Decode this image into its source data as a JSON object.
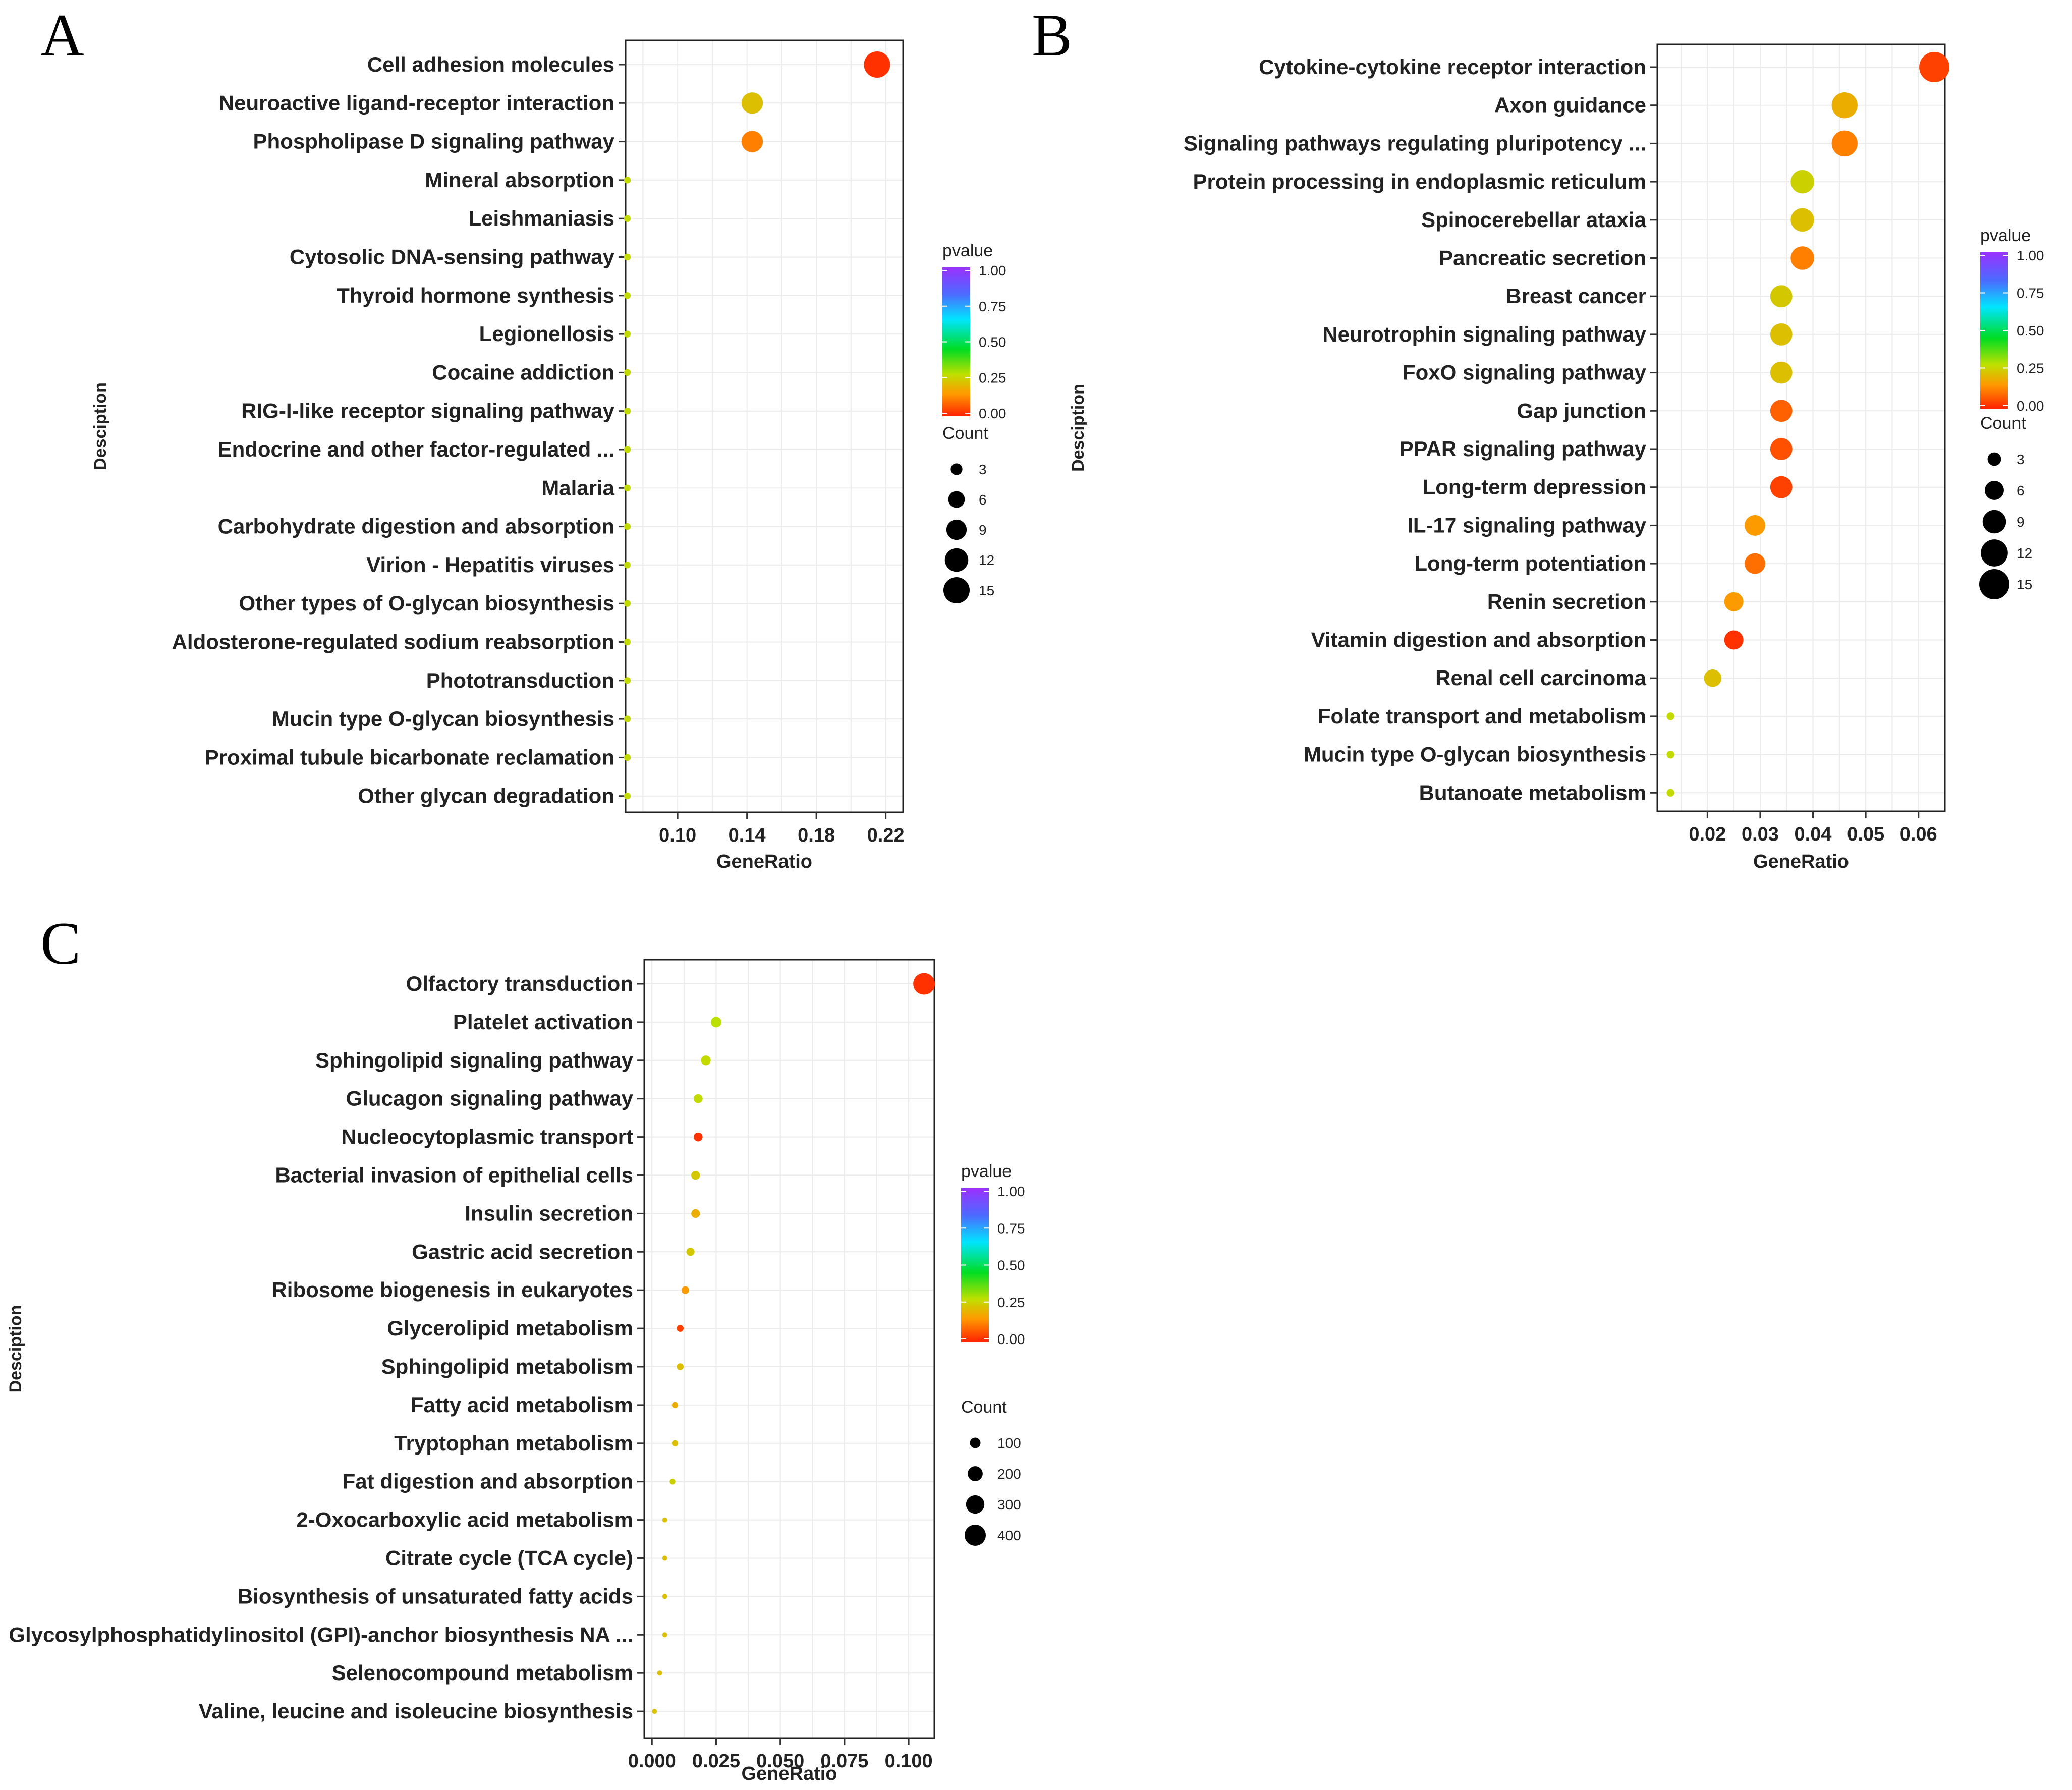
{
  "chart_data": [
    {
      "type": "scatter",
      "panel_label": "A",
      "title": "",
      "xlabel": "GeneRatio",
      "ylabel": "Desciption",
      "xlim": [
        0.07,
        0.23
      ],
      "x_ticks": [
        0.1,
        0.14,
        0.18,
        0.22
      ],
      "x_tick_labels": [
        "0.10",
        "0.14",
        "0.18",
        "0.22"
      ],
      "categories": [
        "Cell adhesion molecules",
        "Neuroactive ligand-receptor interaction",
        "Phospholipase D signaling pathway",
        "Mineral absorption",
        "Leishmaniasis",
        "Cytosolic DNA-sensing pathway",
        "Thyroid hormone synthesis",
        "Legionellosis",
        "Cocaine addiction",
        "RIG-I-like receptor signaling pathway",
        "Endocrine and other factor-regulated ...",
        "Malaria",
        "Carbohydrate digestion and absorption",
        "Virion - Hepatitis viruses",
        "Other types of O-glycan biosynthesis",
        "Aldosterone-regulated sodium reabsorption",
        "Phototransduction",
        "Mucin type O-glycan biosynthesis",
        "Proximal tubule bicarbonate reclamation",
        "Other glycan degradation"
      ],
      "gene_ratio": [
        0.215,
        0.143,
        0.143,
        0.071,
        0.071,
        0.071,
        0.071,
        0.071,
        0.071,
        0.071,
        0.071,
        0.071,
        0.071,
        0.071,
        0.071,
        0.071,
        0.071,
        0.071,
        0.071,
        0.071
      ],
      "count": [
        15,
        10,
        10,
        1,
        1,
        1,
        1,
        1,
        1,
        1,
        1,
        1,
        1,
        1,
        1,
        1,
        1,
        1,
        1,
        1
      ],
      "pvalue": [
        0.01,
        0.12,
        0.06,
        0.15,
        0.15,
        0.15,
        0.15,
        0.15,
        0.15,
        0.15,
        0.15,
        0.15,
        0.15,
        0.15,
        0.15,
        0.15,
        0.15,
        0.15,
        0.15,
        0.15
      ],
      "color_legend": {
        "title": "pvalue",
        "ticks": [
          "1.00",
          "0.75",
          "0.50",
          "0.25",
          "0.00"
        ]
      },
      "size_legend": {
        "title": "Count",
        "values": [
          3,
          6,
          9,
          12,
          15
        ],
        "labels": [
          "3",
          "6",
          "9",
          "12",
          "15"
        ]
      }
    },
    {
      "type": "scatter",
      "panel_label": "B",
      "title": "",
      "xlabel": "GeneRatio",
      "ylabel": "Desciption",
      "xlim": [
        0.0105,
        0.065
      ],
      "x_ticks": [
        0.02,
        0.03,
        0.04,
        0.05,
        0.06
      ],
      "x_tick_labels": [
        "0.02",
        "0.03",
        "0.04",
        "0.05",
        "0.06"
      ],
      "categories": [
        "Cytokine-cytokine receptor interaction",
        "Axon guidance",
        "Signaling pathways regulating pluripotency ...",
        "Protein processing in endoplasmic reticulum",
        "Spinocerebellar ataxia",
        "Pancreatic secretion",
        "Breast cancer",
        "Neurotrophin signaling pathway",
        "FoxO signaling pathway",
        "Gap junction",
        "PPAR signaling pathway",
        "Long-term depression",
        "IL-17 signaling pathway",
        "Long-term potentiation",
        "Renin secretion",
        "Vitamin digestion and absorption",
        "Renal cell carcinoma",
        "Folate transport and metabolism",
        "Mucin type O-glycan biosynthesis",
        "Butanoate metabolism"
      ],
      "gene_ratio": [
        0.063,
        0.046,
        0.046,
        0.038,
        0.038,
        0.038,
        0.034,
        0.034,
        0.034,
        0.034,
        0.034,
        0.034,
        0.029,
        0.029,
        0.025,
        0.025,
        0.021,
        0.013,
        0.013,
        0.013
      ],
      "count": [
        15,
        11,
        11,
        9,
        9,
        9,
        8,
        8,
        8,
        8,
        8,
        8,
        7,
        7,
        6,
        6,
        5,
        1,
        1,
        1
      ],
      "pvalue": [
        0.02,
        0.1,
        0.06,
        0.14,
        0.12,
        0.06,
        0.13,
        0.12,
        0.12,
        0.04,
        0.03,
        0.02,
        0.08,
        0.05,
        0.08,
        0.01,
        0.12,
        0.15,
        0.15,
        0.15
      ],
      "color_legend": {
        "title": "pvalue",
        "ticks": [
          "1.00",
          "0.75",
          "0.50",
          "0.25",
          "0.00"
        ]
      },
      "size_legend": {
        "title": "Count",
        "values": [
          3,
          6,
          9,
          12,
          15
        ],
        "labels": [
          "3",
          "6",
          "9",
          "12",
          "15"
        ]
      }
    },
    {
      "type": "scatter",
      "panel_label": "C",
      "title": "",
      "xlabel": "GeneRatio",
      "ylabel": "Desciption",
      "xlim": [
        -0.003,
        0.11
      ],
      "x_ticks": [
        0.0,
        0.025,
        0.05,
        0.075,
        0.1
      ],
      "x_tick_labels": [
        "0.000",
        "0.025",
        "0.050",
        "0.075",
        "0.100"
      ],
      "categories": [
        "Olfactory transduction",
        "Platelet activation",
        "Sphingolipid signaling pathway",
        "Glucagon signaling pathway",
        "Nucleocytoplasmic transport",
        "Bacterial invasion of epithelial cells",
        "Insulin secretion",
        "Gastric acid secretion",
        "Ribosome biogenesis in eukaryotes",
        "Glycerolipid metabolism",
        "Sphingolipid metabolism",
        "Fatty acid metabolism",
        "Tryptophan metabolism",
        "Fat digestion and absorption",
        "2-Oxocarboxylic acid metabolism",
        "Citrate cycle (TCA cycle)",
        "Biosynthesis of unsaturated fatty acids",
        "Glycosylphosphatidylinositol (GPI)-anchor biosynthesis NA ...",
        "Selenocompound metabolism",
        "Valine, leucine and isoleucine biosynthesis"
      ],
      "gene_ratio": [
        0.106,
        0.025,
        0.021,
        0.018,
        0.018,
        0.017,
        0.017,
        0.015,
        0.013,
        0.011,
        0.011,
        0.009,
        0.009,
        0.008,
        0.005,
        0.005,
        0.005,
        0.005,
        0.003,
        0.001
      ],
      "count": [
        420,
        100,
        85,
        72,
        70,
        68,
        67,
        60,
        52,
        42,
        42,
        35,
        35,
        30,
        20,
        18,
        18,
        18,
        12,
        5
      ],
      "pvalue": [
        0.01,
        0.16,
        0.15,
        0.15,
        0.01,
        0.13,
        0.1,
        0.13,
        0.08,
        0.02,
        0.12,
        0.1,
        0.12,
        0.14,
        0.12,
        0.12,
        0.12,
        0.12,
        0.12,
        0.12
      ],
      "color_legend": {
        "title": "pvalue",
        "ticks": [
          "1.00",
          "0.75",
          "0.50",
          "0.25",
          "0.00"
        ]
      },
      "size_legend": {
        "title": "Count",
        "values": [
          100,
          200,
          300,
          400
        ],
        "labels": [
          "100",
          "200",
          "300",
          "400"
        ]
      }
    }
  ]
}
